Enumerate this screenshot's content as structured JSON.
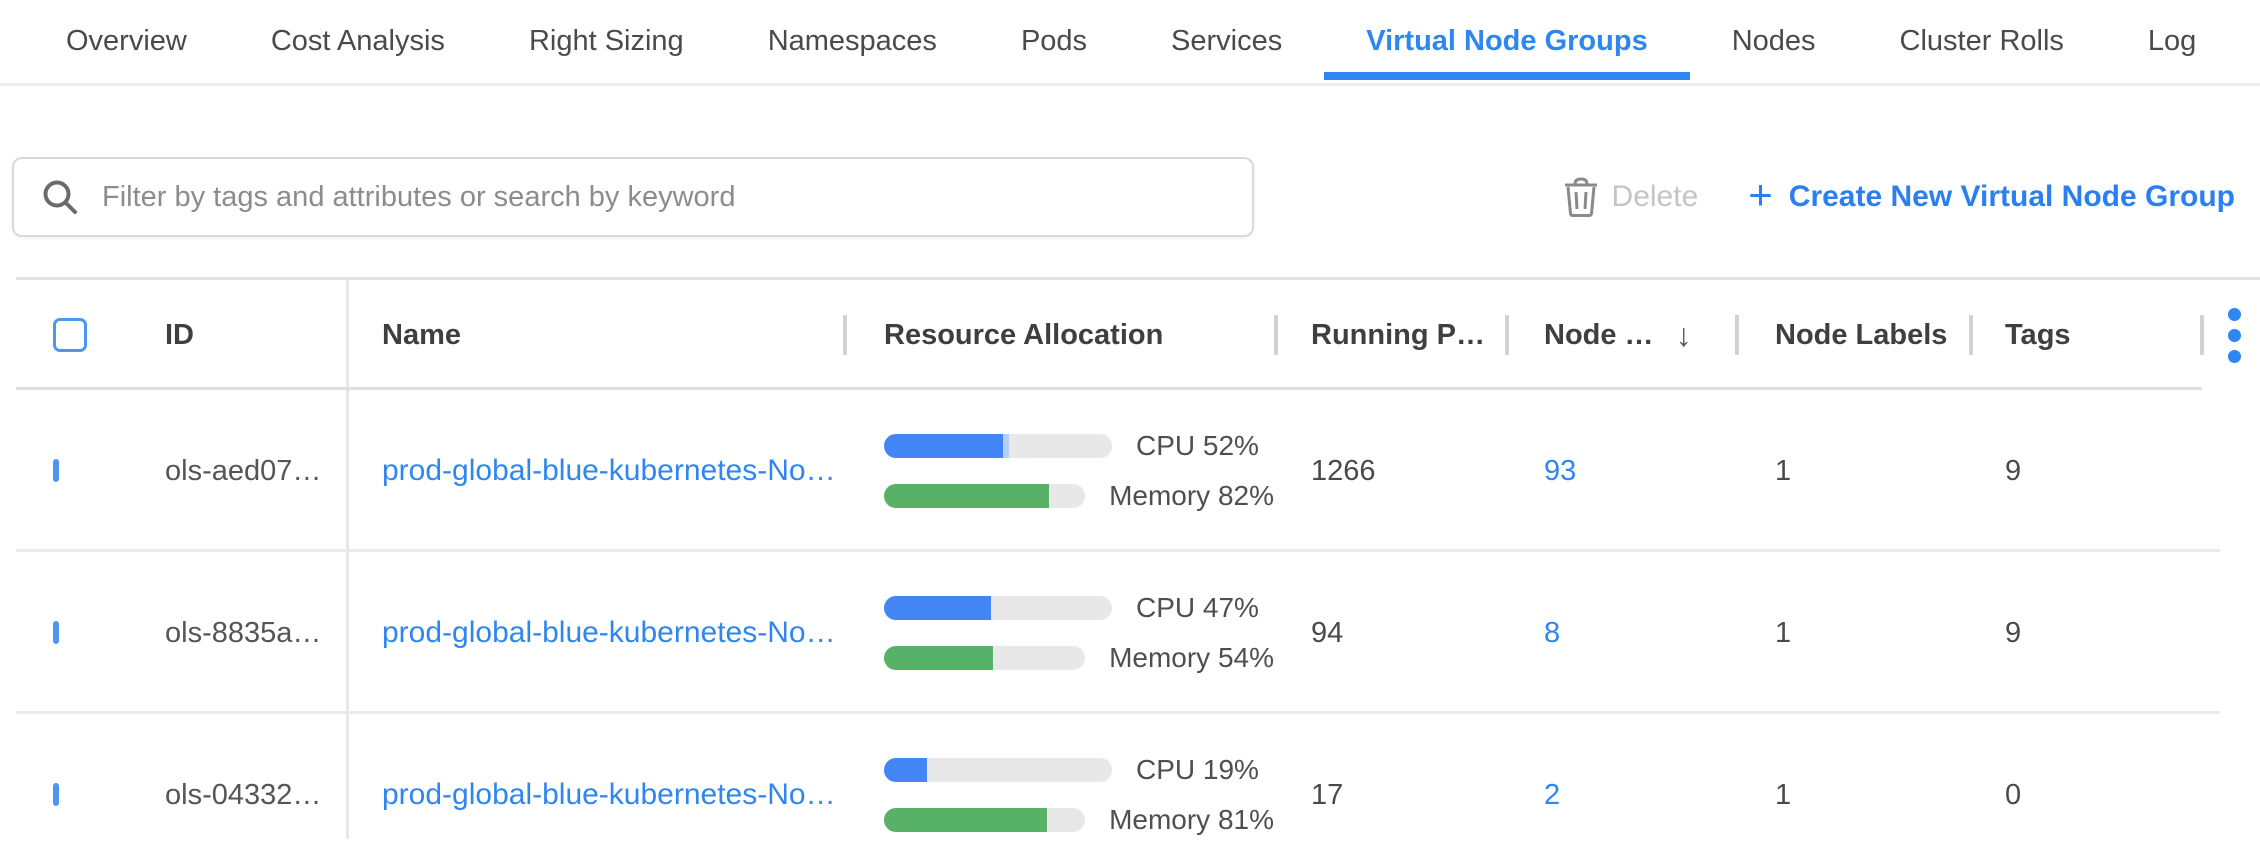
{
  "tabs": [
    {
      "label": "Overview",
      "active": false
    },
    {
      "label": "Cost Analysis",
      "active": false
    },
    {
      "label": "Right Sizing",
      "active": false
    },
    {
      "label": "Namespaces",
      "active": false
    },
    {
      "label": "Pods",
      "active": false
    },
    {
      "label": "Services",
      "active": false
    },
    {
      "label": "Virtual Node Groups",
      "active": true
    },
    {
      "label": "Nodes",
      "active": false
    },
    {
      "label": "Cluster Rolls",
      "active": false
    },
    {
      "label": "Log",
      "active": false
    }
  ],
  "toolbar": {
    "search_placeholder": "Filter by tags and attributes or search by keyword",
    "delete_label": "Delete",
    "create_plus": "+",
    "create_label": "Create New Virtual Node Group"
  },
  "table": {
    "columns": {
      "id": "ID",
      "name": "Name",
      "resource": "Resource Allocation",
      "running": "Running P…",
      "nodes": "Node …",
      "labels": "Node Labels",
      "tags": "Tags"
    },
    "sort_icon": "↓",
    "rows": [
      {
        "id": "ols-aed07…",
        "name": "prod-global-blue-kubernetes-No…",
        "cpu_pct": 52,
        "cpu_extra_pct": 3,
        "cpu_label": "CPU 52%",
        "mem_pct": 82,
        "mem_label": "Memory 82%",
        "running_pods": "1266",
        "node_count": "93",
        "node_labels": "1",
        "tags": "9"
      },
      {
        "id": "ols-8835a…",
        "name": "prod-global-blue-kubernetes-No…",
        "cpu_pct": 47,
        "cpu_extra_pct": 0,
        "cpu_label": "CPU 47%",
        "mem_pct": 54,
        "mem_label": "Memory 54%",
        "running_pods": "94",
        "node_count": "8",
        "node_labels": "1",
        "tags": "9"
      },
      {
        "id": "ols-04332…",
        "name": "prod-global-blue-kubernetes-No…",
        "cpu_pct": 19,
        "cpu_extra_pct": 0,
        "cpu_label": "CPU 19%",
        "mem_pct": 81,
        "mem_label": "Memory 81%",
        "running_pods": "17",
        "node_count": "2",
        "node_labels": "1",
        "tags": "0"
      }
    ]
  },
  "colors": {
    "accent_blue": "#2E86F0",
    "bar_blue": "#4285F4",
    "bar_blue_light": "#B5CFF8",
    "bar_green": "#57B268",
    "bar_track": "#E8E8E8"
  }
}
